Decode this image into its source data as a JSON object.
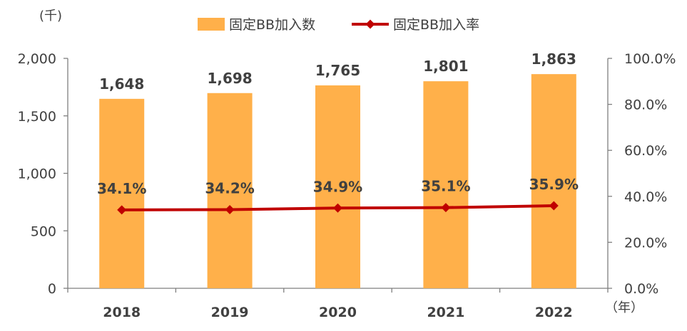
{
  "chart_data": {
    "type": "bar",
    "categories": [
      "2018",
      "2019",
      "2020",
      "2021",
      "2022"
    ],
    "series": [
      {
        "name": "固定BB加入数",
        "type": "bar",
        "axis": "left",
        "color": "#ffb04a",
        "values": [
          1648,
          1698,
          1765,
          1801,
          1863
        ],
        "labels": [
          "1,648",
          "1,698",
          "1,765",
          "1,801",
          "1,863"
        ]
      },
      {
        "name": "固定BB加入率",
        "type": "line",
        "axis": "right",
        "color": "#c00000",
        "marker": "diamond",
        "values": [
          34.1,
          34.2,
          34.9,
          35.1,
          35.9
        ],
        "labels": [
          "34.1%",
          "34.2%",
          "34.9%",
          "35.1%",
          "35.9%"
        ]
      }
    ],
    "y_left": {
      "unit_label": "(千)",
      "range": [
        0,
        2000
      ],
      "ticks": [
        0,
        500,
        1000,
        1500,
        2000
      ],
      "tick_labels": [
        "0",
        "500",
        "1,000",
        "1,500",
        "2,000"
      ]
    },
    "y_right": {
      "range": [
        0,
        100
      ],
      "ticks": [
        0,
        20,
        40,
        60,
        80,
        100
      ],
      "tick_labels": [
        "0.0%",
        "20.0%",
        "40.0%",
        "60.0%",
        "80.0%",
        "100.0%"
      ]
    },
    "x_axis": {
      "unit_label": "（年）"
    },
    "legend": {
      "position": "top-center"
    },
    "grid": false
  }
}
